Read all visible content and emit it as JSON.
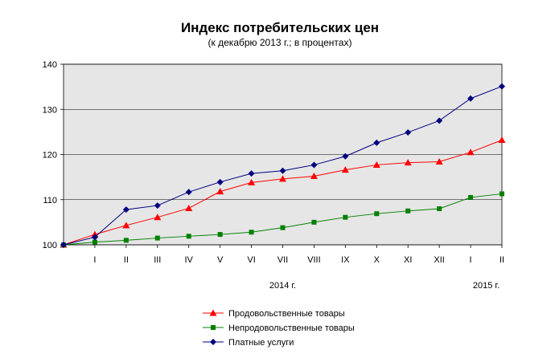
{
  "chart_data": {
    "type": "line",
    "title": "Индекс потребительских цен",
    "subtitle": "(к декабрю 2013 г.; в процентах)",
    "categories": [
      "",
      "I",
      "II",
      "III",
      "IV",
      "V",
      "VI",
      "VII",
      "VIII",
      "IX",
      "X",
      "XI",
      "XII",
      "I",
      "II"
    ],
    "year_labels": [
      {
        "label": "2014 г.",
        "at_category": 7
      },
      {
        "label": "2015 г.",
        "at_category": 13.5
      }
    ],
    "ylim": [
      100,
      140
    ],
    "yticks": [
      100,
      110,
      120,
      130,
      140
    ],
    "grid": true,
    "legend_position": "bottom-center",
    "plot_background": "#e6e6e6",
    "series": [
      {
        "name": "Продовольственные товары",
        "color": "#ff0000",
        "marker": "triangle",
        "values": [
          100,
          102.3,
          104.3,
          106.1,
          108.1,
          111.8,
          113.8,
          114.6,
          115.2,
          116.6,
          117.7,
          118.2,
          118.4,
          120.5,
          123.2
        ]
      },
      {
        "name": "Непродовольственные товары",
        "color": "#008000",
        "marker": "square",
        "values": [
          100,
          100.6,
          101.0,
          101.5,
          101.9,
          102.3,
          102.8,
          103.8,
          105.0,
          106.1,
          106.9,
          107.5,
          108.0,
          110.5,
          111.3
        ]
      },
      {
        "name": "Платные услуги",
        "color": "#000080",
        "marker": "diamond",
        "values": [
          100,
          101.7,
          107.8,
          108.7,
          111.7,
          113.9,
          115.8,
          116.4,
          117.7,
          119.6,
          122.6,
          124.9,
          127.5,
          132.4,
          135.1
        ]
      }
    ]
  }
}
